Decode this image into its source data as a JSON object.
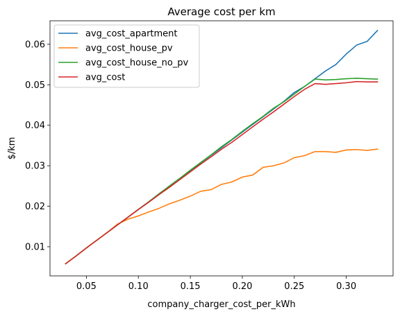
{
  "chart_data": {
    "type": "line",
    "title": "Average cost per km",
    "xlabel": "company_charger_cost_per_kWh",
    "ylabel": "$/km",
    "xlim": [
      0.015,
      0.345
    ],
    "ylim": [
      0.0028,
      0.0658
    ],
    "xticks": [
      0.05,
      0.1,
      0.15,
      0.2,
      0.25,
      0.3
    ],
    "xtick_labels": [
      "0.05",
      "0.10",
      "0.15",
      "0.20",
      "0.25",
      "0.30"
    ],
    "yticks": [
      0.01,
      0.02,
      0.03,
      0.04,
      0.05,
      0.06
    ],
    "ytick_labels": [
      "0.01",
      "0.02",
      "0.03",
      "0.04",
      "0.05",
      "0.06"
    ],
    "grid": false,
    "legend_position": "top-left",
    "x": [
      0.03,
      0.04,
      0.05,
      0.06,
      0.07,
      0.08,
      0.09,
      0.1,
      0.11,
      0.12,
      0.13,
      0.14,
      0.15,
      0.16,
      0.17,
      0.18,
      0.19,
      0.2,
      0.21,
      0.22,
      0.23,
      0.24,
      0.25,
      0.26,
      0.27,
      0.28,
      0.29,
      0.3,
      0.31,
      0.32,
      0.33
    ],
    "series": [
      {
        "name": "avg_cost_apartment",
        "color": "#1f77b4",
        "values": [
          0.0058,
          0.0077,
          0.0097,
          0.0116,
          0.0135,
          0.0154,
          0.0173,
          0.0192,
          0.0211,
          0.023,
          0.025,
          0.0269,
          0.0288,
          0.0307,
          0.0326,
          0.0345,
          0.0364,
          0.0383,
          0.0402,
          0.0421,
          0.044,
          0.0459,
          0.0481,
          0.0496,
          0.0515,
          0.0534,
          0.055,
          0.0576,
          0.0598,
          0.0607,
          0.0634
        ]
      },
      {
        "name": "avg_cost_house_pv",
        "color": "#ff7f0e",
        "values": [
          0.0058,
          0.0077,
          0.0097,
          0.0116,
          0.0135,
          0.0156,
          0.0168,
          0.0176,
          0.0186,
          0.0195,
          0.0206,
          0.0215,
          0.0225,
          0.0237,
          0.0241,
          0.0254,
          0.026,
          0.0272,
          0.0277,
          0.0296,
          0.03,
          0.0307,
          0.032,
          0.0325,
          0.0335,
          0.0335,
          0.0333,
          0.0339,
          0.034,
          0.0338,
          0.0341
        ]
      },
      {
        "name": "avg_cost_house_no_pv",
        "color": "#2ca02c",
        "values": [
          0.0058,
          0.0077,
          0.0097,
          0.0116,
          0.0135,
          0.0154,
          0.0173,
          0.0192,
          0.0211,
          0.0231,
          0.025,
          0.0269,
          0.0289,
          0.0308,
          0.0327,
          0.0347,
          0.0365,
          0.0385,
          0.0404,
          0.0422,
          0.0442,
          0.0458,
          0.0477,
          0.0496,
          0.0514,
          0.0512,
          0.0513,
          0.0515,
          0.0516,
          0.0515,
          0.0514
        ]
      },
      {
        "name": "avg_cost",
        "color": "#d62728",
        "values": [
          0.0058,
          0.0077,
          0.0097,
          0.0116,
          0.0135,
          0.0154,
          0.0173,
          0.0192,
          0.021,
          0.0229,
          0.0247,
          0.0266,
          0.0285,
          0.0304,
          0.0322,
          0.0341,
          0.0358,
          0.0377,
          0.0396,
          0.0415,
          0.0433,
          0.0452,
          0.0471,
          0.0489,
          0.0503,
          0.0501,
          0.0503,
          0.0505,
          0.0508,
          0.0507,
          0.0507
        ]
      }
    ]
  }
}
